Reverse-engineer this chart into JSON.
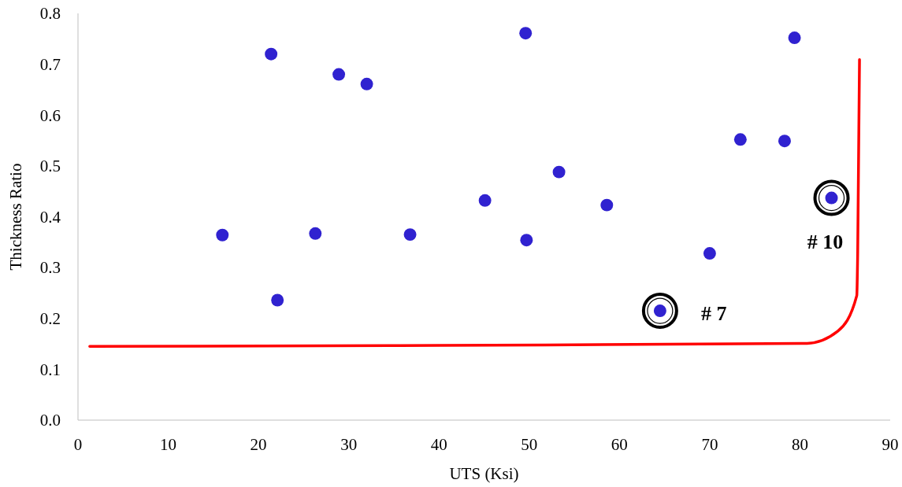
{
  "chart_data": {
    "type": "scatter",
    "xlabel": "UTS (Ksi)",
    "ylabel": "Thickness Ratio",
    "xlim": [
      0,
      90
    ],
    "xticks": [
      0,
      10,
      20,
      30,
      40,
      50,
      60,
      70,
      80,
      90
    ],
    "ylim": [
      0,
      0.8
    ],
    "yticks": [
      {
        "value": 0,
        "label": "0.0"
      },
      0.1,
      0.2,
      0.3,
      0.4,
      0.5,
      0.6,
      0.7,
      0.8
    ],
    "grid": false,
    "marker": "circle",
    "series": [
      {
        "color": "#3022d0",
        "x": [
          16.0,
          21.4,
          22.1,
          26.3,
          28.9,
          32.0,
          36.8,
          45.1,
          49.6,
          49.7,
          53.3,
          58.6,
          64.5,
          70.0,
          73.4,
          78.3,
          79.4,
          83.5
        ],
        "values": [
          0.364,
          0.72,
          0.236,
          0.367,
          0.68,
          0.661,
          0.365,
          0.432,
          0.761,
          0.354,
          0.488,
          0.423,
          0.215,
          0.328,
          0.552,
          0.549,
          0.752,
          0.437
        ]
      },
      {
        "type": "line",
        "color": "#ff0000",
        "marker": "none",
        "line_style": "solid",
        "x": [
          1.3,
          40,
          80.8,
          84.2,
          86.3,
          86.4,
          86.6
        ],
        "values": [
          0.145,
          0.147,
          0.151,
          0.175,
          0.245,
          0.33,
          0.709
        ]
      }
    ],
    "annotations": [
      {
        "text": "# 7",
        "x": 64.5,
        "y": 0.215
      },
      {
        "text": "# 10",
        "x": 83.5,
        "y": 0.437
      }
    ]
  }
}
